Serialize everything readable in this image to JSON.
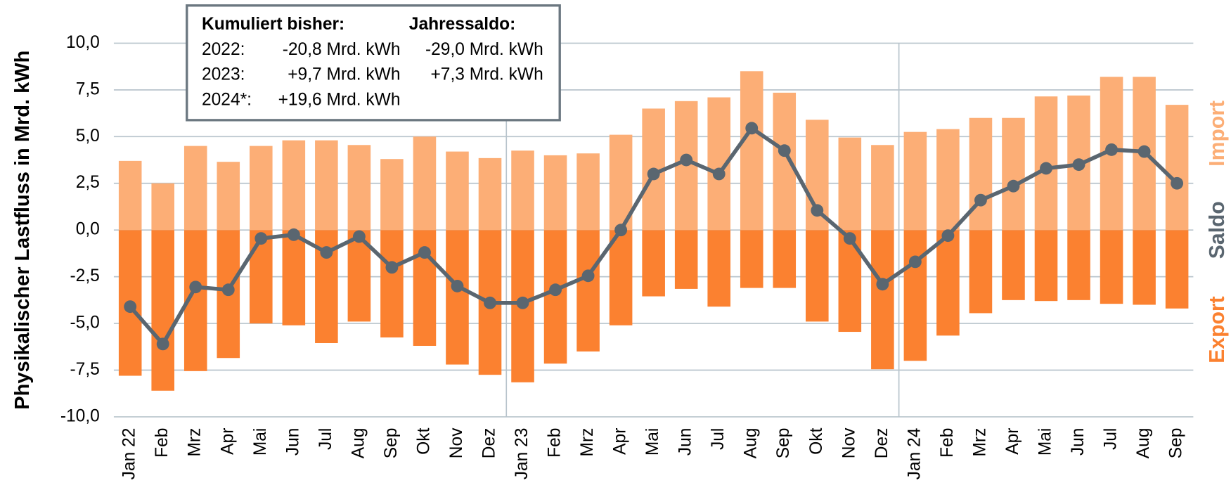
{
  "chart_data": {
    "type": "bar",
    "y_label": "Physikalischer Lastfluss in Mrd. kWh",
    "categories": [
      "Jan 22",
      "Feb",
      "Mrz",
      "Apr",
      "Mai",
      "Jun",
      "Jul",
      "Aug",
      "Sep",
      "Okt",
      "Nov",
      "Dez",
      "Jan 23",
      "Feb",
      "Mrz",
      "Apr",
      "Mai",
      "Jun",
      "Jul",
      "Aug",
      "Sep",
      "Okt",
      "Nov",
      "Dez",
      "Jan 24",
      "Feb",
      "Mrz",
      "Apr",
      "Mai",
      "Jun",
      "Jul",
      "Aug",
      "Sep"
    ],
    "series": [
      {
        "name": "Export",
        "type": "bar",
        "color": "#fb8130",
        "values": [
          -7.8,
          -8.6,
          -7.55,
          -6.85,
          -5.0,
          -5.1,
          -6.05,
          -4.9,
          -5.75,
          -6.2,
          -7.2,
          -7.75,
          -8.15,
          -7.15,
          -6.5,
          -5.1,
          -3.55,
          -3.15,
          -4.1,
          -3.1,
          -3.1,
          -4.9,
          -5.45,
          -7.45,
          -7.0,
          -5.65,
          -4.45,
          -3.75,
          -3.8,
          -3.75,
          -3.95,
          -4.0,
          -4.2
        ]
      },
      {
        "name": "Saldo",
        "type": "line",
        "color": "#5a6670",
        "values": [
          -4.1,
          -6.1,
          -3.05,
          -3.2,
          -0.45,
          -0.25,
          -1.2,
          -0.35,
          -2.0,
          -1.2,
          -3.0,
          -3.9,
          -3.9,
          -3.2,
          -2.45,
          0.0,
          3.0,
          3.75,
          3.0,
          5.45,
          4.25,
          1.05,
          -0.45,
          -2.9,
          -1.7,
          -0.3,
          1.6,
          2.35,
          3.3,
          3.5,
          4.3,
          4.2,
          2.5
        ]
      },
      {
        "name": "Import",
        "type": "bar",
        "color": "#fcae76",
        "values": [
          3.7,
          2.5,
          4.5,
          3.65,
          4.5,
          4.8,
          4.8,
          4.55,
          3.8,
          5.0,
          4.2,
          3.85,
          4.25,
          4.0,
          4.1,
          5.1,
          6.5,
          6.9,
          7.1,
          8.5,
          7.35,
          5.9,
          4.95,
          4.55,
          5.25,
          5.4,
          6.0,
          6.0,
          7.15,
          7.2,
          8.2,
          8.2,
          6.7
        ]
      }
    ],
    "ylim": [
      -10,
      10
    ],
    "yticks": [
      {
        "value": -10,
        "label": "-10,0"
      },
      {
        "value": -7.5,
        "label": "-7,5"
      },
      {
        "value": -5,
        "label": "-5,0"
      },
      {
        "value": -2.5,
        "label": "-2,5"
      },
      {
        "value": 0,
        "label": "0,0"
      },
      {
        "value": 2.5,
        "label": "2,5"
      },
      {
        "value": 5,
        "label": "5,0"
      },
      {
        "value": 7.5,
        "label": "7,5"
      },
      {
        "value": 10,
        "label": "10,0"
      }
    ],
    "grid": true,
    "annotation": {
      "headers": [
        "Kumuliert bisher:",
        "Jahressaldo:"
      ],
      "rows": [
        {
          "year": "2022:",
          "cumulative": "-20,8 Mrd. kWh",
          "annual": "-29,0 Mrd. kWh"
        },
        {
          "year": "2023:",
          "cumulative": "+9,7 Mrd. kWh",
          "annual": "+7,3 Mrd. kWh"
        },
        {
          "year": "2024*:",
          "cumulative": "+19,6 Mrd. kWh"
        }
      ]
    }
  }
}
